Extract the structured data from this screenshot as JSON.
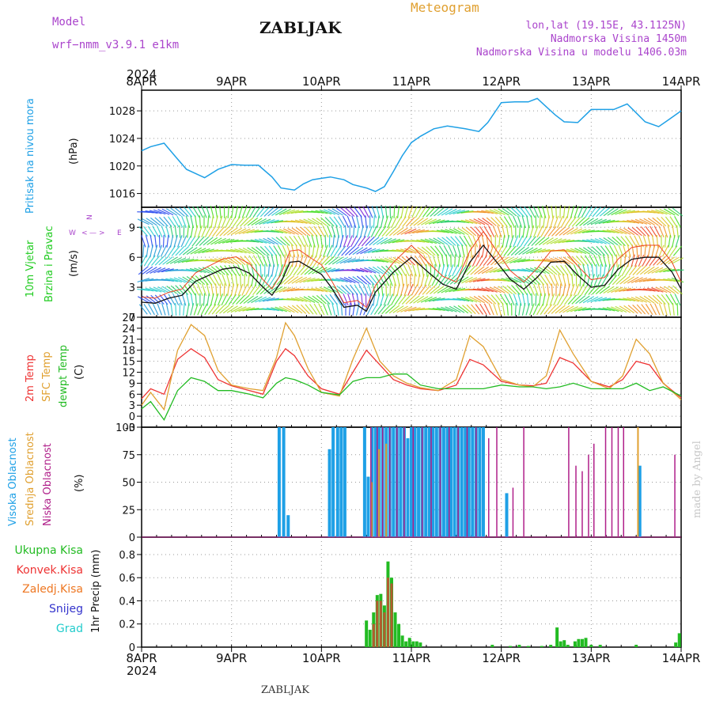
{
  "header": {
    "model_label": "Model",
    "model_value": "wrf−nmm_v3.9.1  e1km",
    "station": "ZABLJAK",
    "meteogram": "Meteogram",
    "lonlat": "lon,lat (19.15E, 43.1125N)",
    "elevation": "Nadmorska Visina 1450m",
    "model_elevation": "Nadmorska Visina u modelu 1406.03m",
    "year_top": "2024"
  },
  "footer": {
    "year": "2024",
    "station": "ZABLJAK"
  },
  "watermark": "made by Angel",
  "colors": {
    "pressure": "#1ea0e6",
    "wind_label": "#22cc22",
    "temp2m": "#ee3333",
    "sfc": "#e0a030",
    "dewpt": "#22bb22",
    "high_cloud": "#1ea0e6",
    "mid_cloud": "#e0a030",
    "low_cloud": "#b0208a",
    "precip_total": "#22bb22",
    "precip_conv": "#ee3333",
    "precip_frozen": "#ee7722",
    "snow": "#3333cc",
    "hail": "#22cccc",
    "wind_compass": "#aa44cc"
  },
  "time_axis": {
    "ticks": [
      "8APR",
      "9APR",
      "10APR",
      "11APR",
      "12APR",
      "13APR",
      "14APR"
    ],
    "range_days": [
      0,
      6
    ]
  },
  "panel_labels": {
    "pressure": {
      "name": "Pritisak na nivou mora",
      "unit": "(hPa)"
    },
    "wind": {
      "name1": "10m Vjetar",
      "name2": "Brzina i Pravac",
      "unit": "(m/s)"
    },
    "temp": {
      "n1": "2m Temp",
      "n2": "SFC Temp",
      "n3": "dewpt Temp",
      "unit": "(C)"
    },
    "cloud": {
      "n1": "Visoka Oblacnost",
      "n2": "Srednja Oblacnost",
      "n3": "Niska Oblacnost",
      "unit": "(%)"
    },
    "precip": {
      "unit": "1hr Precip (mm)",
      "legend": [
        "Ukupna Kisa",
        "Konvek.Kisa",
        "Zaledj.Kisa",
        "Snijeg",
        "Grad"
      ]
    }
  },
  "chart_data": [
    {
      "type": "line",
      "name": "pressure",
      "ylim": [
        1014,
        1031
      ],
      "yticks": [
        1016,
        1020,
        1024,
        1028
      ],
      "x": [
        0,
        0.1,
        0.25,
        0.4,
        0.5,
        0.7,
        0.85,
        1.0,
        1.15,
        1.3,
        1.45,
        1.55,
        1.7,
        1.8,
        1.9,
        2.0,
        2.1,
        2.25,
        2.35,
        2.5,
        2.6,
        2.7,
        2.8,
        2.9,
        3.0,
        3.1,
        3.25,
        3.4,
        3.6,
        3.75,
        3.85,
        4.0,
        4.15,
        4.3,
        4.4,
        4.5,
        4.6,
        4.7,
        4.85,
        5.0,
        5.15,
        5.25,
        5.4,
        5.5,
        5.6,
        5.75,
        5.85,
        6.0
      ],
      "y": [
        1022.2,
        1022.8,
        1023.3,
        1021.0,
        1019.5,
        1018.3,
        1019.5,
        1020.2,
        1020.1,
        1020.1,
        1018.4,
        1016.8,
        1016.5,
        1017.4,
        1018.0,
        1018.2,
        1018.4,
        1018.0,
        1017.3,
        1016.8,
        1016.3,
        1017.0,
        1019.2,
        1021.5,
        1023.4,
        1024.3,
        1025.4,
        1025.8,
        1025.4,
        1025.0,
        1026.3,
        1029.2,
        1029.3,
        1029.3,
        1029.8,
        1028.6,
        1027.4,
        1026.4,
        1026.3,
        1028.2,
        1028.2,
        1028.2,
        1029.0,
        1027.7,
        1026.4,
        1025.7,
        1026.6,
        1028.0
      ]
    },
    {
      "type": "line",
      "name": "10m wind speed",
      "ylim": [
        0,
        11
      ],
      "yticks": [
        0,
        3,
        6,
        9
      ],
      "x": [
        0,
        0.15,
        0.3,
        0.45,
        0.6,
        0.75,
        0.9,
        1.05,
        1.2,
        1.35,
        1.45,
        1.55,
        1.65,
        1.75,
        1.9,
        2.0,
        2.1,
        2.25,
        2.4,
        2.5,
        2.6,
        2.8,
        3.0,
        3.2,
        3.35,
        3.5,
        3.65,
        3.8,
        3.95,
        4.1,
        4.25,
        4.4,
        4.55,
        4.7,
        4.85,
        5.0,
        5.15,
        5.3,
        5.45,
        5.6,
        5.75,
        5.9,
        6.0
      ],
      "y": [
        1.5,
        1.4,
        1.9,
        2.2,
        3.6,
        4.2,
        4.8,
        5.0,
        4.4,
        3.0,
        2.2,
        3.5,
        5.5,
        5.6,
        4.8,
        4.3,
        3.1,
        1.0,
        1.2,
        0.6,
        2.5,
        4.5,
        6.0,
        4.4,
        3.3,
        2.8,
        5.5,
        7.2,
        5.5,
        3.8,
        2.8,
        4.0,
        5.5,
        5.6,
        4.2,
        3.0,
        3.2,
        4.8,
        5.8,
        6.0,
        6.0,
        4.5,
        2.8
      ]
    },
    {
      "type": "line",
      "name": "temperature",
      "ylim": [
        -3,
        27
      ],
      "yticks": [
        -3,
        0,
        3,
        6,
        9,
        12,
        15,
        18,
        21,
        24,
        27
      ],
      "x": [
        0,
        0.1,
        0.25,
        0.4,
        0.55,
        0.7,
        0.85,
        1.0,
        1.2,
        1.35,
        1.5,
        1.6,
        1.7,
        1.85,
        2.0,
        2.2,
        2.35,
        2.5,
        2.65,
        2.8,
        2.95,
        3.1,
        3.3,
        3.5,
        3.65,
        3.8,
        4.0,
        4.2,
        4.35,
        4.5,
        4.65,
        4.8,
        5.0,
        5.2,
        5.35,
        5.5,
        5.65,
        5.8,
        6.0
      ],
      "series": [
        {
          "name": "2m Temp",
          "values": [
            4.8,
            7.5,
            6.0,
            15.5,
            18.4,
            16.0,
            10.0,
            8.3,
            7.0,
            6.0,
            15.0,
            18.4,
            16.5,
            11.0,
            7.5,
            6.0,
            12.0,
            18.0,
            14.0,
            10.0,
            8.5,
            7.5,
            7.0,
            8.5,
            15.5,
            14.0,
            9.5,
            8.5,
            8.3,
            9.0,
            16.0,
            14.5,
            9.5,
            8.0,
            10.0,
            15.0,
            14.0,
            9.0,
            5.0
          ]
        },
        {
          "name": "SFC Temp",
          "values": [
            3.0,
            6.5,
            1.8,
            18.0,
            25.0,
            22.0,
            12.5,
            8.5,
            7.5,
            7.0,
            16.0,
            25.5,
            22.0,
            13.0,
            6.5,
            5.5,
            15.5,
            24.0,
            15.0,
            11.0,
            9.0,
            7.8,
            7.0,
            10.0,
            22.0,
            19.0,
            10.0,
            8.5,
            8.0,
            11.0,
            23.5,
            17.0,
            9.5,
            7.5,
            11.0,
            21.0,
            17.0,
            9.0,
            4.5
          ]
        },
        {
          "name": "dewpt Temp",
          "values": [
            2.0,
            4.0,
            -1.0,
            7.0,
            10.5,
            9.5,
            7.0,
            7.0,
            6.0,
            5.0,
            9.0,
            10.5,
            10.0,
            8.5,
            6.5,
            5.8,
            9.5,
            10.5,
            10.5,
            11.5,
            11.5,
            8.5,
            7.5,
            7.5,
            7.5,
            7.5,
            8.5,
            8.0,
            8.0,
            7.5,
            8.0,
            9.0,
            7.5,
            7.5,
            7.5,
            9.0,
            7.0,
            8.0,
            5.5
          ]
        }
      ]
    },
    {
      "type": "bar",
      "name": "cloud cover",
      "ylim": [
        0,
        100
      ],
      "yticks": [
        0,
        25,
        50,
        75,
        100
      ],
      "series": [
        {
          "name": "Visoka Oblacnost",
          "x": [
            1.53,
            1.58,
            1.63,
            2.09,
            2.13,
            2.18,
            2.22,
            2.26,
            2.48,
            2.52,
            2.56,
            2.6,
            2.64,
            2.68,
            2.72,
            2.76,
            2.8,
            2.84,
            2.88,
            2.92,
            2.96,
            3.0,
            3.04,
            3.08,
            3.12,
            3.16,
            3.2,
            3.24,
            3.28,
            3.32,
            3.36,
            3.4,
            3.44,
            3.48,
            3.52,
            3.56,
            3.6,
            3.64,
            3.68,
            3.72,
            3.76,
            3.8,
            4.06,
            5.54
          ],
          "values": [
            100,
            100,
            20,
            80,
            100,
            100,
            100,
            100,
            100,
            55,
            100,
            100,
            100,
            100,
            100,
            100,
            100,
            100,
            100,
            100,
            90,
            100,
            100,
            100,
            100,
            100,
            100,
            100,
            100,
            100,
            100,
            100,
            100,
            100,
            100,
            100,
            100,
            100,
            100,
            100,
            100,
            100,
            40,
            65
          ]
        },
        {
          "name": "Srednja Oblacnost",
          "x": [
            2.56,
            2.64,
            2.72,
            5.52
          ],
          "values": [
            50,
            80,
            85,
            100
          ]
        },
        {
          "name": "Niska Oblacnost",
          "x": [
            0.08,
            2.37,
            2.55,
            2.62,
            2.68,
            2.76,
            2.84,
            2.92,
            3.02,
            3.12,
            3.22,
            3.32,
            3.42,
            3.52,
            3.62,
            3.72,
            3.86,
            3.95,
            4.13,
            4.25,
            4.35,
            4.42,
            4.65,
            4.75,
            4.83,
            4.9,
            4.97,
            5.03,
            5.1,
            5.16,
            5.23,
            5.3,
            5.36,
            5.48,
            5.6,
            5.93
          ],
          "values": [
            8,
            5,
            100,
            100,
            100,
            100,
            100,
            100,
            100,
            100,
            100,
            100,
            100,
            100,
            100,
            100,
            90,
            100,
            45,
            100,
            8,
            8,
            8,
            100,
            65,
            60,
            75,
            85,
            5,
            100,
            100,
            100,
            100,
            8,
            8,
            75
          ]
        }
      ]
    },
    {
      "type": "bar",
      "name": "1hr precipitation",
      "ylim": [
        0,
        0.95
      ],
      "yticks": [
        0,
        0.2,
        0.4,
        0.6,
        0.8
      ],
      "series": [
        {
          "name": "Ukupna Kisa",
          "x": [
            2.5,
            2.54,
            2.58,
            2.62,
            2.66,
            2.7,
            2.74,
            2.78,
            2.82,
            2.86,
            2.9,
            2.94,
            2.98,
            3.02,
            3.06,
            3.1,
            3.9,
            4.1,
            4.2,
            4.3,
            4.45,
            4.55,
            4.62,
            4.66,
            4.7,
            4.74,
            4.82,
            4.86,
            4.9,
            4.94,
            5.0,
            5.1,
            5.5,
            5.94,
            5.98
          ],
          "values": [
            0.23,
            0.15,
            0.3,
            0.45,
            0.46,
            0.36,
            0.74,
            0.6,
            0.3,
            0.2,
            0.1,
            0.05,
            0.08,
            0.05,
            0.05,
            0.04,
            0.02,
            0.01,
            0.02,
            0.01,
            0.01,
            0.02,
            0.17,
            0.05,
            0.06,
            0.02,
            0.05,
            0.07,
            0.07,
            0.08,
            0.02,
            0.02,
            0.02,
            0.04,
            0.12
          ]
        },
        {
          "name": "Konvek.Kisa",
          "x": [
            2.58,
            2.62,
            2.66,
            2.7,
            2.74,
            2.78
          ],
          "values": [
            0.2,
            0.4,
            0.4,
            0.3,
            0.6,
            0.55
          ]
        },
        {
          "name": "Zaledj.Kisa",
          "x": [],
          "values": []
        },
        {
          "name": "Snijeg",
          "x": [],
          "values": []
        },
        {
          "name": "Grad",
          "x": [],
          "values": []
        }
      ]
    }
  ]
}
